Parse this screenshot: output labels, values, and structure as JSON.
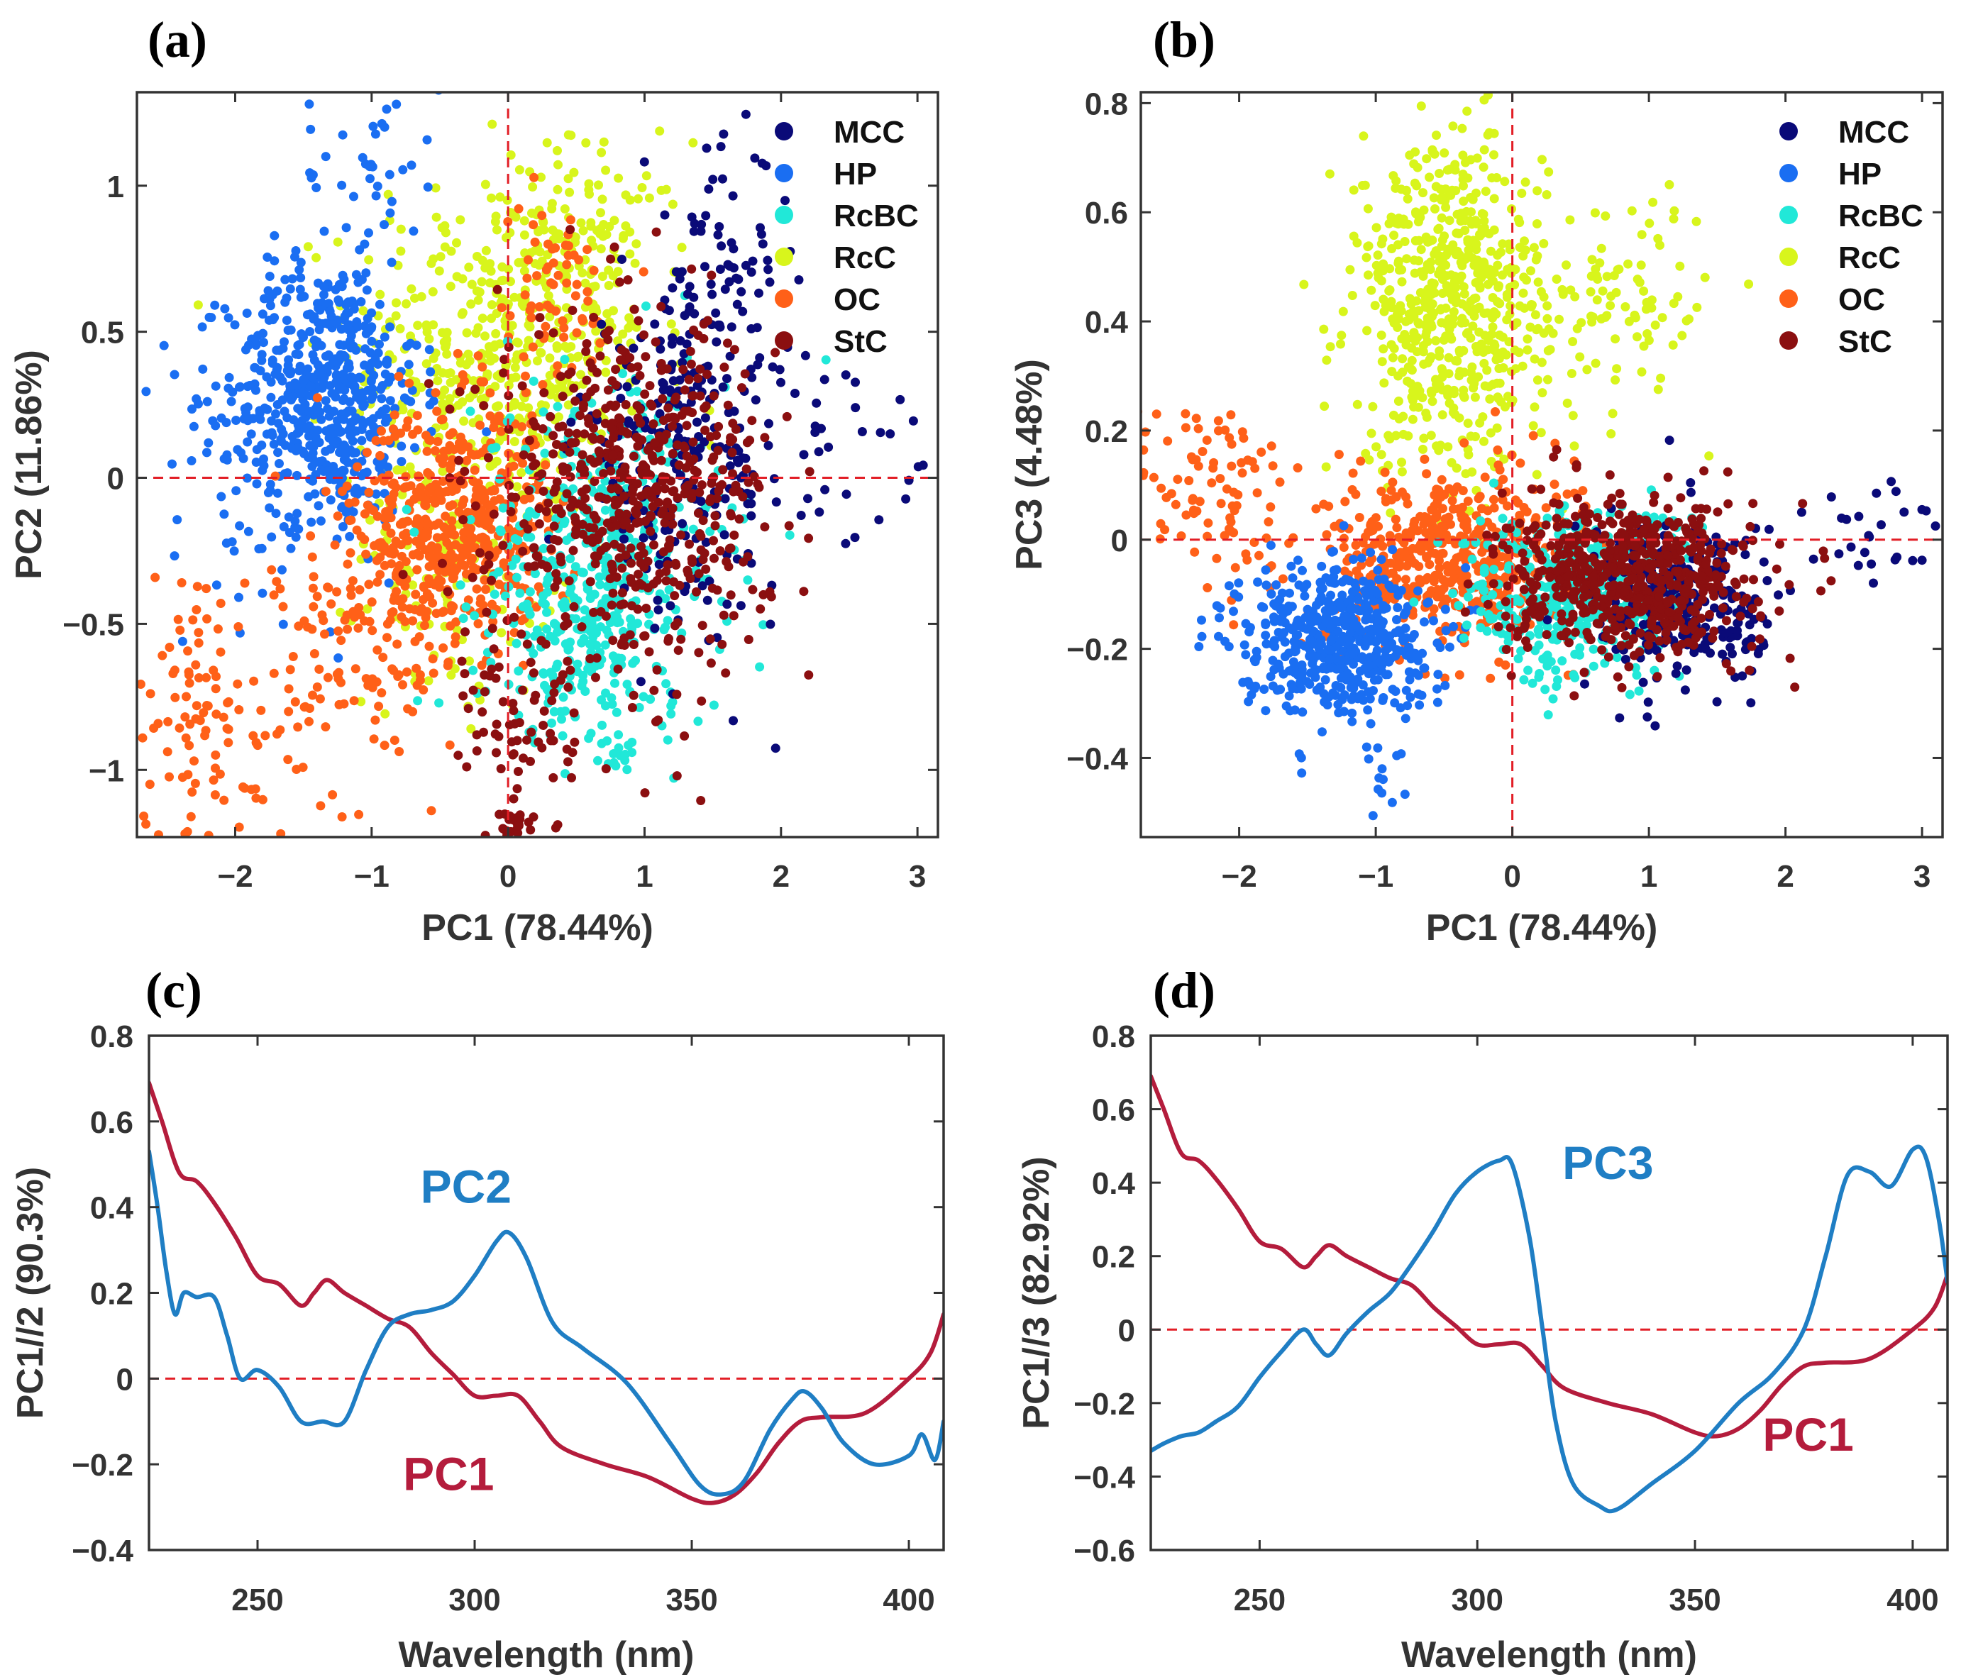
{
  "colors": {
    "MCC": "#0a0a78",
    "HP": "#1a6ef2",
    "RcBC": "#21e8d8",
    "RcC": "#d8f51c",
    "OC": "#ff6018",
    "StC": "#8b0f10",
    "pc1_line": "#b41c3c",
    "pc_other_line": "#1f7ec4",
    "zero_line": "#e21e26",
    "axis": "#333333"
  },
  "chart_data": [
    {
      "id": "a",
      "panel_label": "(a)",
      "type": "scatter",
      "xlabel": "PC1 (78.44%)",
      "ylabel": "PC2 (11.86%)",
      "xlim": [
        -2.72,
        3.15
      ],
      "ylim": [
        -1.23,
        1.32
      ],
      "xticks": [
        -2,
        -1,
        0,
        1,
        2,
        3
      ],
      "xtick_labels": [
        "−2",
        "−1",
        "0",
        "1",
        "2",
        "3"
      ],
      "yticks": [
        -1,
        -0.5,
        0,
        0.5,
        1
      ],
      "ytick_labels": [
        "−1",
        "−0.5",
        "0",
        "0.5",
        "1"
      ],
      "zero_lines": true,
      "legend": [
        "MCC",
        "HP",
        "RcBC",
        "RcC",
        "OC",
        "StC"
      ],
      "legend_position": "top-right",
      "series": [
        {
          "name": "RcC",
          "clusters": [
            {
              "cx": -0.05,
              "cy": 0.45,
              "sx": 0.55,
              "sy": 0.3,
              "n": 420
            },
            {
              "cx": 0.6,
              "cy": 0.75,
              "sx": 0.35,
              "sy": 0.2,
              "n": 110
            },
            {
              "cx": -0.35,
              "cy": -0.2,
              "sx": 0.35,
              "sy": 0.3,
              "n": 150
            }
          ]
        },
        {
          "name": "HP",
          "clusters": [
            {
              "cx": -1.35,
              "cy": 0.3,
              "sx": 0.35,
              "sy": 0.22,
              "n": 520
            },
            {
              "cx": -1.0,
              "cy": 1.05,
              "sx": 0.25,
              "sy": 0.18,
              "n": 40
            },
            {
              "cx": -1.6,
              "cy": 0.05,
              "sx": 0.45,
              "sy": 0.25,
              "n": 90
            }
          ]
        },
        {
          "name": "OC",
          "clusters": [
            {
              "cx": -0.4,
              "cy": -0.15,
              "sx": 0.35,
              "sy": 0.2,
              "n": 480
            },
            {
              "cx": -1.0,
              "cy": -0.55,
              "sx": 0.35,
              "sy": 0.3,
              "n": 150
            },
            {
              "cx": -2.2,
              "cy": -0.8,
              "sx": 0.3,
              "sy": 0.25,
              "n": 110
            },
            {
              "cx": 0.3,
              "cy": 0.6,
              "sx": 0.25,
              "sy": 0.18,
              "n": 70
            }
          ]
        },
        {
          "name": "RcBC",
          "clusters": [
            {
              "cx": 0.7,
              "cy": -0.25,
              "sx": 0.45,
              "sy": 0.3,
              "n": 380
            },
            {
              "cx": 0.5,
              "cy": -0.6,
              "sx": 0.3,
              "sy": 0.15,
              "n": 120
            },
            {
              "cx": 0.8,
              "cy": -0.95,
              "sx": 0.08,
              "sy": 0.08,
              "n": 10
            }
          ]
        },
        {
          "name": "MCC",
          "clusters": [
            {
              "cx": 1.3,
              "cy": 0.1,
              "sx": 0.4,
              "sy": 0.3,
              "n": 260
            },
            {
              "cx": 1.6,
              "cy": 0.75,
              "sx": 0.2,
              "sy": 0.2,
              "n": 50
            },
            {
              "cx": 2.6,
              "cy": 0.05,
              "sx": 0.35,
              "sy": 0.15,
              "n": 25
            }
          ]
        },
        {
          "name": "StC",
          "clusters": [
            {
              "cx": 0.9,
              "cy": -0.05,
              "sx": 0.5,
              "sy": 0.3,
              "n": 600
            },
            {
              "cx": 0.1,
              "cy": -0.85,
              "sx": 0.2,
              "sy": 0.2,
              "n": 70
            },
            {
              "cx": 0.05,
              "cy": -1.18,
              "sx": 0.06,
              "sy": 0.03,
              "n": 20
            }
          ]
        }
      ]
    },
    {
      "id": "b",
      "panel_label": "(b)",
      "type": "scatter",
      "xlabel": "PC1 (78.44%)",
      "ylabel": "PC3 (4.48%)",
      "xlim": [
        -2.72,
        3.15
      ],
      "ylim": [
        -0.545,
        0.82
      ],
      "xticks": [
        -2,
        -1,
        0,
        1,
        2,
        3
      ],
      "xtick_labels": [
        "−2",
        "−1",
        "0",
        "1",
        "2",
        "3"
      ],
      "yticks": [
        -0.4,
        -0.2,
        0,
        0.2,
        0.4,
        0.6,
        0.8
      ],
      "ytick_labels": [
        "−0.4",
        "−0.2",
        "0",
        "0.2",
        "0.4",
        "0.6",
        "0.8"
      ],
      "zero_lines": true,
      "legend": [
        "MCC",
        "HP",
        "RcBC",
        "RcC",
        "OC",
        "StC"
      ],
      "legend_position": "top-right",
      "series": [
        {
          "name": "RcC",
          "clusters": [
            {
              "cx": -0.45,
              "cy": 0.43,
              "sx": 0.35,
              "sy": 0.15,
              "n": 620
            },
            {
              "cx": 0.8,
              "cy": 0.45,
              "sx": 0.4,
              "sy": 0.1,
              "n": 100
            }
          ]
        },
        {
          "name": "OC",
          "clusters": [
            {
              "cx": -0.45,
              "cy": -0.03,
              "sx": 0.45,
              "sy": 0.08,
              "n": 520
            },
            {
              "cx": -2.2,
              "cy": 0.08,
              "sx": 0.3,
              "sy": 0.1,
              "n": 90
            }
          ]
        },
        {
          "name": "HP",
          "clusters": [
            {
              "cx": -1.3,
              "cy": -0.18,
              "sx": 0.35,
              "sy": 0.07,
              "n": 520
            },
            {
              "cx": -0.95,
              "cy": -0.45,
              "sx": 0.1,
              "sy": 0.04,
              "n": 12
            }
          ]
        },
        {
          "name": "RcBC",
          "clusters": [
            {
              "cx": 0.45,
              "cy": -0.1,
              "sx": 0.4,
              "sy": 0.08,
              "n": 380
            }
          ]
        },
        {
          "name": "MCC",
          "clusters": [
            {
              "cx": 1.3,
              "cy": -0.12,
              "sx": 0.35,
              "sy": 0.08,
              "n": 260
            },
            {
              "cx": 2.7,
              "cy": 0.0,
              "sx": 0.25,
              "sy": 0.06,
              "n": 25
            }
          ]
        },
        {
          "name": "StC",
          "clusters": [
            {
              "cx": 0.85,
              "cy": -0.07,
              "sx": 0.45,
              "sy": 0.07,
              "n": 650
            }
          ]
        }
      ]
    },
    {
      "id": "c",
      "panel_label": "(c)",
      "type": "line",
      "xlabel": "Wavelength (nm)",
      "ylabel": "PC1//2 (90.3%)",
      "xlim": [
        225,
        408
      ],
      "ylim": [
        -0.4,
        0.8
      ],
      "xticks": [
        250,
        300,
        350,
        400
      ],
      "xtick_labels": [
        "250",
        "300",
        "350",
        "400"
      ],
      "yticks": [
        -0.4,
        -0.2,
        0,
        0.2,
        0.4,
        0.6,
        0.8
      ],
      "ytick_labels": [
        "−0.4",
        "−0.2",
        "0",
        "0.2",
        "0.4",
        "0.6",
        "0.8"
      ],
      "zero_line": true,
      "series": [
        {
          "name": "PC1",
          "label": "PC1",
          "color_key": "pc1_line",
          "x": [
            225,
            228,
            232,
            236,
            240,
            245,
            250,
            255,
            260,
            263,
            266,
            270,
            275,
            280,
            285,
            290,
            295,
            300,
            305,
            310,
            315,
            320,
            330,
            340,
            350,
            355,
            360,
            365,
            370,
            375,
            380,
            390,
            400,
            405,
            408
          ],
          "y": [
            0.69,
            0.6,
            0.48,
            0.46,
            0.41,
            0.33,
            0.24,
            0.22,
            0.17,
            0.2,
            0.23,
            0.2,
            0.17,
            0.14,
            0.12,
            0.06,
            0.01,
            -0.04,
            -0.04,
            -0.04,
            -0.1,
            -0.16,
            -0.2,
            -0.23,
            -0.28,
            -0.29,
            -0.27,
            -0.22,
            -0.15,
            -0.1,
            -0.09,
            -0.08,
            0.0,
            0.06,
            0.15
          ]
        },
        {
          "name": "PC2",
          "label": "PC2",
          "color_key": "pc_other_line",
          "x": [
            225,
            227,
            229,
            231,
            233,
            236,
            240,
            243,
            246,
            250,
            255,
            260,
            265,
            270,
            275,
            280,
            285,
            290,
            295,
            300,
            305,
            308,
            312,
            318,
            325,
            335,
            345,
            352,
            357,
            362,
            368,
            373,
            376,
            380,
            385,
            392,
            400,
            403,
            406,
            408
          ],
          "y": [
            0.53,
            0.4,
            0.25,
            0.15,
            0.2,
            0.19,
            0.19,
            0.1,
            0.0,
            0.02,
            -0.02,
            -0.1,
            -0.1,
            -0.1,
            0.02,
            0.12,
            0.15,
            0.16,
            0.18,
            0.24,
            0.32,
            0.34,
            0.28,
            0.13,
            0.07,
            -0.01,
            -0.15,
            -0.25,
            -0.27,
            -0.24,
            -0.12,
            -0.05,
            -0.03,
            -0.07,
            -0.15,
            -0.2,
            -0.18,
            -0.13,
            -0.19,
            -0.1
          ]
        }
      ],
      "annotations": [
        {
          "text": "PC2",
          "x": 298,
          "y": 0.41,
          "color_key": "pc_other_line"
        },
        {
          "text": "PC1",
          "x": 294,
          "y": -0.26,
          "color_key": "pc1_line"
        }
      ]
    },
    {
      "id": "d",
      "panel_label": "(d)",
      "type": "line",
      "xlabel": "Wavelength (nm)",
      "ylabel": "PC1//3 (82.92%)",
      "xlim": [
        225,
        408
      ],
      "ylim": [
        -0.6,
        0.8
      ],
      "xticks": [
        250,
        300,
        350,
        400
      ],
      "xtick_labels": [
        "250",
        "300",
        "350",
        "400"
      ],
      "yticks": [
        -0.6,
        -0.4,
        -0.2,
        0,
        0.2,
        0.4,
        0.6,
        0.8
      ],
      "ytick_labels": [
        "−0.6",
        "−0.4",
        "−0.2",
        "0",
        "0.2",
        "0.4",
        "0.6",
        "0.8"
      ],
      "zero_line": true,
      "series": [
        {
          "name": "PC1",
          "label": "PC1",
          "color_key": "pc1_line",
          "x": [
            225,
            228,
            232,
            236,
            240,
            245,
            250,
            255,
            260,
            263,
            266,
            270,
            275,
            280,
            285,
            290,
            295,
            300,
            305,
            310,
            315,
            320,
            330,
            340,
            350,
            355,
            360,
            365,
            370,
            375,
            380,
            390,
            400,
            405,
            408
          ],
          "y": [
            0.69,
            0.6,
            0.48,
            0.46,
            0.41,
            0.33,
            0.24,
            0.22,
            0.17,
            0.2,
            0.23,
            0.2,
            0.17,
            0.14,
            0.12,
            0.06,
            0.01,
            -0.04,
            -0.04,
            -0.04,
            -0.1,
            -0.16,
            -0.2,
            -0.23,
            -0.28,
            -0.29,
            -0.27,
            -0.22,
            -0.15,
            -0.1,
            -0.09,
            -0.08,
            0.0,
            0.06,
            0.15
          ]
        },
        {
          "name": "PC3",
          "label": "PC3",
          "color_key": "pc_other_line",
          "x": [
            225,
            228,
            232,
            236,
            240,
            245,
            250,
            255,
            260,
            263,
            266,
            270,
            275,
            280,
            285,
            290,
            295,
            300,
            305,
            308,
            312,
            315,
            318,
            322,
            328,
            332,
            340,
            350,
            360,
            368,
            375,
            380,
            385,
            390,
            395,
            400,
            403,
            406,
            408
          ],
          "y": [
            -0.33,
            -0.31,
            -0.29,
            -0.28,
            -0.25,
            -0.21,
            -0.13,
            -0.06,
            0.0,
            -0.04,
            -0.07,
            -0.01,
            0.05,
            0.1,
            0.18,
            0.27,
            0.37,
            0.43,
            0.46,
            0.45,
            0.25,
            0.0,
            -0.25,
            -0.42,
            -0.48,
            -0.49,
            -0.42,
            -0.33,
            -0.2,
            -0.12,
            0.0,
            0.2,
            0.42,
            0.43,
            0.39,
            0.49,
            0.47,
            0.3,
            0.13
          ]
        }
      ],
      "annotations": [
        {
          "text": "PC3",
          "x": 330,
          "y": 0.41,
          "color_key": "pc_other_line"
        },
        {
          "text": "PC1",
          "x": 376,
          "y": -0.33,
          "color_key": "pc1_line"
        }
      ]
    }
  ]
}
